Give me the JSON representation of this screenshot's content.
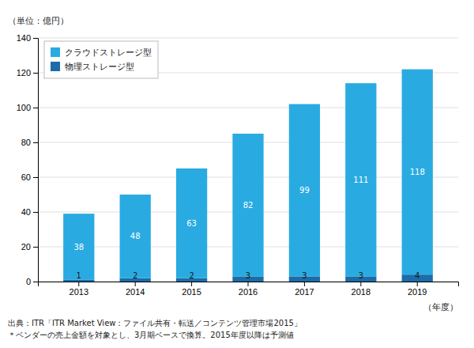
{
  "chart_data": {
    "type": "bar",
    "stacked": true,
    "categories": [
      "2013",
      "2014",
      "2015",
      "2016",
      "2017",
      "2018",
      "2019"
    ],
    "series": [
      {
        "name": "物理ストレージ型",
        "color": "#1B6CA8",
        "values": [
          1,
          2,
          2,
          3,
          3,
          3,
          4
        ]
      },
      {
        "name": "クラウドストレージ型",
        "color": "#29ABE2",
        "values": [
          38,
          48,
          63,
          82,
          99,
          111,
          118
        ]
      }
    ],
    "ylim": [
      0,
      140
    ],
    "yticks": [
      0,
      20,
      40,
      60,
      80,
      100,
      120,
      140
    ],
    "ylabel": "（単位：億円）",
    "xlabel": "（年度）",
    "annotations": [
      "出典：ITR「ITR Market View：ファイル共有・転送／コンテンツ管理市場2015」",
      "＊ベンダーの売上金額を対象とし、3月期ベースで換算。2015年度以降は予測値"
    ],
    "grid": true,
    "legend": "upper left",
    "data_labels": true
  }
}
